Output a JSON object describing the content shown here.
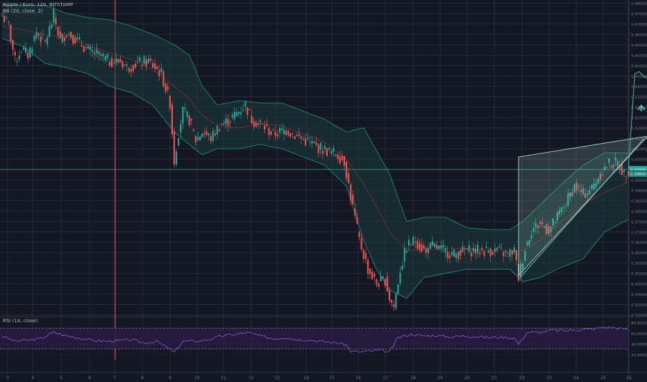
{
  "header": {
    "symbol_line": "Ripple / Euro, 120, BITSTAMP",
    "indicator_line": "BB (20, close, 2)",
    "rsi_line": "RSI (14, close)"
  },
  "colors": {
    "background": "#131722",
    "grid": "#262b3a",
    "up": "#26a69a",
    "down": "#ef5350",
    "bb_band": "#1e8c7a",
    "bb_fill": "#1a3a3a",
    "bb_basis": "#7b2a3a",
    "rsi_line": "#7e57c2",
    "rsi_fill": "#2b1c44",
    "pattern": "#a5d6c8",
    "projection": "#4db6ac",
    "price_line": "#26a69a",
    "axis_text": "#787b86"
  },
  "chart_data": {
    "type": "candlestick",
    "title": "Ripple / Euro, 120, BITSTAMP",
    "ylim": [
      0.3295,
      0.4815
    ],
    "y_ticks": [
      "0.48000",
      "0.47500",
      "0.47000",
      "0.46500",
      "0.46000",
      "0.45500",
      "0.45000",
      "0.44500",
      "0.44000",
      "0.43500",
      "0.43000",
      "0.42500",
      "0.42000",
      "0.41500",
      "0.41000",
      "0.40500",
      "0.40000",
      "0.39500",
      "0.39000",
      "0.38500",
      "0.38000",
      "0.37500",
      "0.37000",
      "0.36500",
      "0.36000",
      "0.35500",
      "0.35000",
      "0.34500",
      "0.34000",
      "0.33500",
      "0.33000"
    ],
    "x_ticks": [
      "3",
      "4",
      "5",
      "6",
      "7",
      "8",
      "9",
      "10",
      "11",
      "12",
      "13",
      "14",
      "15",
      "16",
      "17",
      "18",
      "19",
      "20",
      "21",
      "22",
      "23",
      "24",
      "25",
      "26"
    ],
    "current_price_label": "0.40000",
    "current_price_label_2": "0.39800",
    "close_path": [
      [
        0,
        0.474
      ],
      [
        3,
        0.469
      ],
      [
        6,
        0.452
      ],
      [
        9,
        0.458
      ],
      [
        12,
        0.455
      ],
      [
        16,
        0.466
      ],
      [
        20,
        0.461
      ],
      [
        24,
        0.474
      ],
      [
        27,
        0.462
      ],
      [
        30,
        0.466
      ],
      [
        35,
        0.462
      ],
      [
        40,
        0.457
      ],
      [
        45,
        0.455
      ],
      [
        50,
        0.452
      ],
      [
        55,
        0.452
      ],
      [
        58,
        0.449
      ],
      [
        63,
        0.451
      ],
      [
        68,
        0.452
      ],
      [
        74,
        0.446
      ],
      [
        78,
        0.432
      ],
      [
        80,
        0.404
      ],
      [
        82,
        0.418
      ],
      [
        84,
        0.428
      ],
      [
        87,
        0.424
      ],
      [
        90,
        0.414
      ],
      [
        93,
        0.418
      ],
      [
        97,
        0.415
      ],
      [
        101,
        0.421
      ],
      [
        106,
        0.424
      ],
      [
        110,
        0.428
      ],
      [
        113,
        0.431
      ],
      [
        116,
        0.424
      ],
      [
        121,
        0.421
      ],
      [
        126,
        0.417
      ],
      [
        132,
        0.419
      ],
      [
        137,
        0.416
      ],
      [
        141,
        0.414
      ],
      [
        146,
        0.411
      ],
      [
        151,
        0.409
      ],
      [
        156,
        0.407
      ],
      [
        159,
        0.404
      ],
      [
        162,
        0.387
      ],
      [
        166,
        0.366
      ],
      [
        170,
        0.352
      ],
      [
        174,
        0.345
      ],
      [
        178,
        0.347
      ],
      [
        180,
        0.338
      ],
      [
        182,
        0.334
      ],
      [
        185,
        0.352
      ],
      [
        188,
        0.363
      ],
      [
        192,
        0.366
      ],
      [
        196,
        0.361
      ],
      [
        200,
        0.363
      ],
      [
        205,
        0.361
      ],
      [
        210,
        0.359
      ],
      [
        215,
        0.361
      ],
      [
        220,
        0.361
      ],
      [
        225,
        0.361
      ],
      [
        230,
        0.361
      ],
      [
        235,
        0.359
      ],
      [
        238,
        0.361
      ],
      [
        240,
        0.348
      ],
      [
        243,
        0.362
      ],
      [
        246,
        0.371
      ],
      [
        250,
        0.374
      ],
      [
        254,
        0.371
      ],
      [
        258,
        0.377
      ],
      [
        262,
        0.384
      ],
      [
        266,
        0.392
      ],
      [
        270,
        0.388
      ],
      [
        274,
        0.391
      ],
      [
        278,
        0.398
      ],
      [
        282,
        0.403
      ],
      [
        286,
        0.403
      ],
      [
        289,
        0.398
      ],
      [
        291,
        0.4
      ]
    ],
    "bollinger": {
      "upper": [
        [
          0,
          0.479
        ],
        [
          10,
          0.479
        ],
        [
          20,
          0.479
        ],
        [
          30,
          0.475
        ],
        [
          40,
          0.473
        ],
        [
          50,
          0.472
        ],
        [
          60,
          0.469
        ],
        [
          70,
          0.465
        ],
        [
          80,
          0.46
        ],
        [
          87,
          0.455
        ],
        [
          93,
          0.44
        ],
        [
          100,
          0.431
        ],
        [
          110,
          0.433
        ],
        [
          120,
          0.432
        ],
        [
          130,
          0.432
        ],
        [
          140,
          0.428
        ],
        [
          150,
          0.424
        ],
        [
          160,
          0.418
        ],
        [
          168,
          0.42
        ],
        [
          174,
          0.409
        ],
        [
          180,
          0.398
        ],
        [
          188,
          0.375
        ],
        [
          196,
          0.377
        ],
        [
          206,
          0.377
        ],
        [
          216,
          0.372
        ],
        [
          226,
          0.371
        ],
        [
          236,
          0.371
        ],
        [
          242,
          0.375
        ],
        [
          250,
          0.383
        ],
        [
          260,
          0.393
        ],
        [
          270,
          0.402
        ],
        [
          280,
          0.408
        ],
        [
          291,
          0.408
        ]
      ],
      "basis": [
        [
          0,
          0.469
        ],
        [
          10,
          0.467
        ],
        [
          20,
          0.465
        ],
        [
          30,
          0.463
        ],
        [
          40,
          0.46
        ],
        [
          50,
          0.456
        ],
        [
          60,
          0.453
        ],
        [
          70,
          0.448
        ],
        [
          80,
          0.44
        ],
        [
          87,
          0.434
        ],
        [
          93,
          0.426
        ],
        [
          100,
          0.421
        ],
        [
          110,
          0.42
        ],
        [
          120,
          0.422
        ],
        [
          130,
          0.421
        ],
        [
          140,
          0.417
        ],
        [
          150,
          0.413
        ],
        [
          160,
          0.405
        ],
        [
          168,
          0.393
        ],
        [
          174,
          0.382
        ],
        [
          180,
          0.37
        ],
        [
          188,
          0.361
        ],
        [
          196,
          0.361
        ],
        [
          206,
          0.362
        ],
        [
          216,
          0.362
        ],
        [
          226,
          0.361
        ],
        [
          236,
          0.361
        ],
        [
          242,
          0.361
        ],
        [
          250,
          0.366
        ],
        [
          260,
          0.375
        ],
        [
          270,
          0.383
        ],
        [
          280,
          0.389
        ],
        [
          291,
          0.394
        ]
      ],
      "lower": [
        [
          0,
          0.463
        ],
        [
          10,
          0.459
        ],
        [
          20,
          0.451
        ],
        [
          30,
          0.449
        ],
        [
          40,
          0.446
        ],
        [
          50,
          0.44
        ],
        [
          60,
          0.437
        ],
        [
          70,
          0.431
        ],
        [
          80,
          0.418
        ],
        [
          87,
          0.412
        ],
        [
          93,
          0.407
        ],
        [
          100,
          0.41
        ],
        [
          110,
          0.41
        ],
        [
          120,
          0.412
        ],
        [
          130,
          0.41
        ],
        [
          140,
          0.406
        ],
        [
          150,
          0.402
        ],
        [
          160,
          0.392
        ],
        [
          168,
          0.366
        ],
        [
          174,
          0.352
        ],
        [
          180,
          0.342
        ],
        [
          188,
          0.338
        ],
        [
          196,
          0.348
        ],
        [
          206,
          0.35
        ],
        [
          216,
          0.352
        ],
        [
          226,
          0.352
        ],
        [
          236,
          0.352
        ],
        [
          242,
          0.346
        ],
        [
          250,
          0.348
        ],
        [
          260,
          0.353
        ],
        [
          270,
          0.357
        ],
        [
          280,
          0.37
        ],
        [
          291,
          0.376
        ]
      ]
    },
    "patterns": {
      "triangle": [
        [
          240,
          0.349
        ],
        [
          240,
          0.406
        ],
        [
          300,
          0.416
        ]
      ],
      "triangle_lower_edge": [
        [
          240,
          0.349
        ],
        [
          300,
          0.416
        ]
      ],
      "projection": [
        [
          291,
          0.4
        ],
        [
          294,
          0.446
        ],
        [
          296,
          0.447
        ],
        [
          299,
          0.444
        ],
        [
          302,
          0.447
        ],
        [
          305,
          0.445
        ],
        [
          308,
          0.446
        ],
        [
          310,
          0.447
        ],
        [
          313,
          0.445
        ]
      ],
      "arrow": [
        297,
        0.43
      ]
    },
    "rsi": {
      "ylim": [
        10,
        90
      ],
      "y_ticks": [
        "80.0000",
        "60.0000",
        "40.0000",
        "20.0000"
      ],
      "upper_band": 70,
      "lower_band": 30,
      "values": [
        [
          0,
          55
        ],
        [
          6,
          45
        ],
        [
          12,
          47
        ],
        [
          18,
          50
        ],
        [
          24,
          62
        ],
        [
          30,
          55
        ],
        [
          36,
          51
        ],
        [
          42,
          47
        ],
        [
          48,
          45
        ],
        [
          54,
          46
        ],
        [
          60,
          48
        ],
        [
          66,
          42
        ],
        [
          72,
          45
        ],
        [
          78,
          30
        ],
        [
          80,
          24
        ],
        [
          84,
          45
        ],
        [
          90,
          45
        ],
        [
          96,
          48
        ],
        [
          102,
          55
        ],
        [
          108,
          58
        ],
        [
          114,
          62
        ],
        [
          120,
          55
        ],
        [
          126,
          50
        ],
        [
          132,
          52
        ],
        [
          138,
          48
        ],
        [
          144,
          47
        ],
        [
          150,
          44
        ],
        [
          156,
          42
        ],
        [
          160,
          38
        ],
        [
          162,
          26
        ],
        [
          166,
          25
        ],
        [
          170,
          26
        ],
        [
          176,
          28
        ],
        [
          180,
          24
        ],
        [
          184,
          52
        ],
        [
          190,
          58
        ],
        [
          196,
          55
        ],
        [
          202,
          56
        ],
        [
          208,
          53
        ],
        [
          214,
          55
        ],
        [
          220,
          54
        ],
        [
          226,
          52
        ],
        [
          232,
          53
        ],
        [
          238,
          51
        ],
        [
          240,
          40
        ],
        [
          244,
          62
        ],
        [
          250,
          62
        ],
        [
          256,
          66
        ],
        [
          262,
          65
        ],
        [
          268,
          67
        ],
        [
          274,
          68
        ],
        [
          280,
          72
        ],
        [
          286,
          70
        ],
        [
          291,
          67
        ]
      ]
    }
  }
}
